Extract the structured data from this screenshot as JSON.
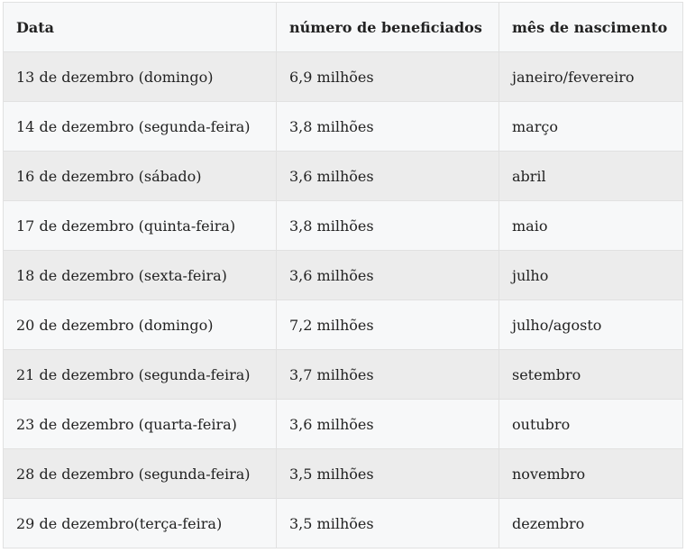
{
  "table": {
    "headers": [
      "Data",
      "número de beneficiados",
      "mês de nascimento"
    ],
    "rows": [
      [
        "13 de dezembro (domingo)",
        "6,9 milhões",
        "janeiro/fevereiro"
      ],
      [
        "14 de dezembro (segunda-feira)",
        "3,8 milhões",
        "março"
      ],
      [
        "16 de dezembro (sábado)",
        "3,6 milhões",
        "abril"
      ],
      [
        "17 de dezembro (quinta-feira)",
        "3,8 milhões",
        "maio"
      ],
      [
        "18 de dezembro (sexta-feira)",
        "3,6 milhões",
        "julho"
      ],
      [
        "20 de dezembro (domingo)",
        "7,2 milhões",
        "julho/agosto"
      ],
      [
        "21 de dezembro (segunda-feira)",
        "3,7 milhões",
        "setembro"
      ],
      [
        "23 de dezembro (quarta-feira)",
        "3,6 milhões",
        "outubro"
      ],
      [
        "28 de dezembro (segunda-feira)",
        "3,5 milhões",
        "novembro"
      ],
      [
        "29 de dezembro(terça-feira)",
        "3,5 milhões",
        "dezembro"
      ]
    ]
  }
}
